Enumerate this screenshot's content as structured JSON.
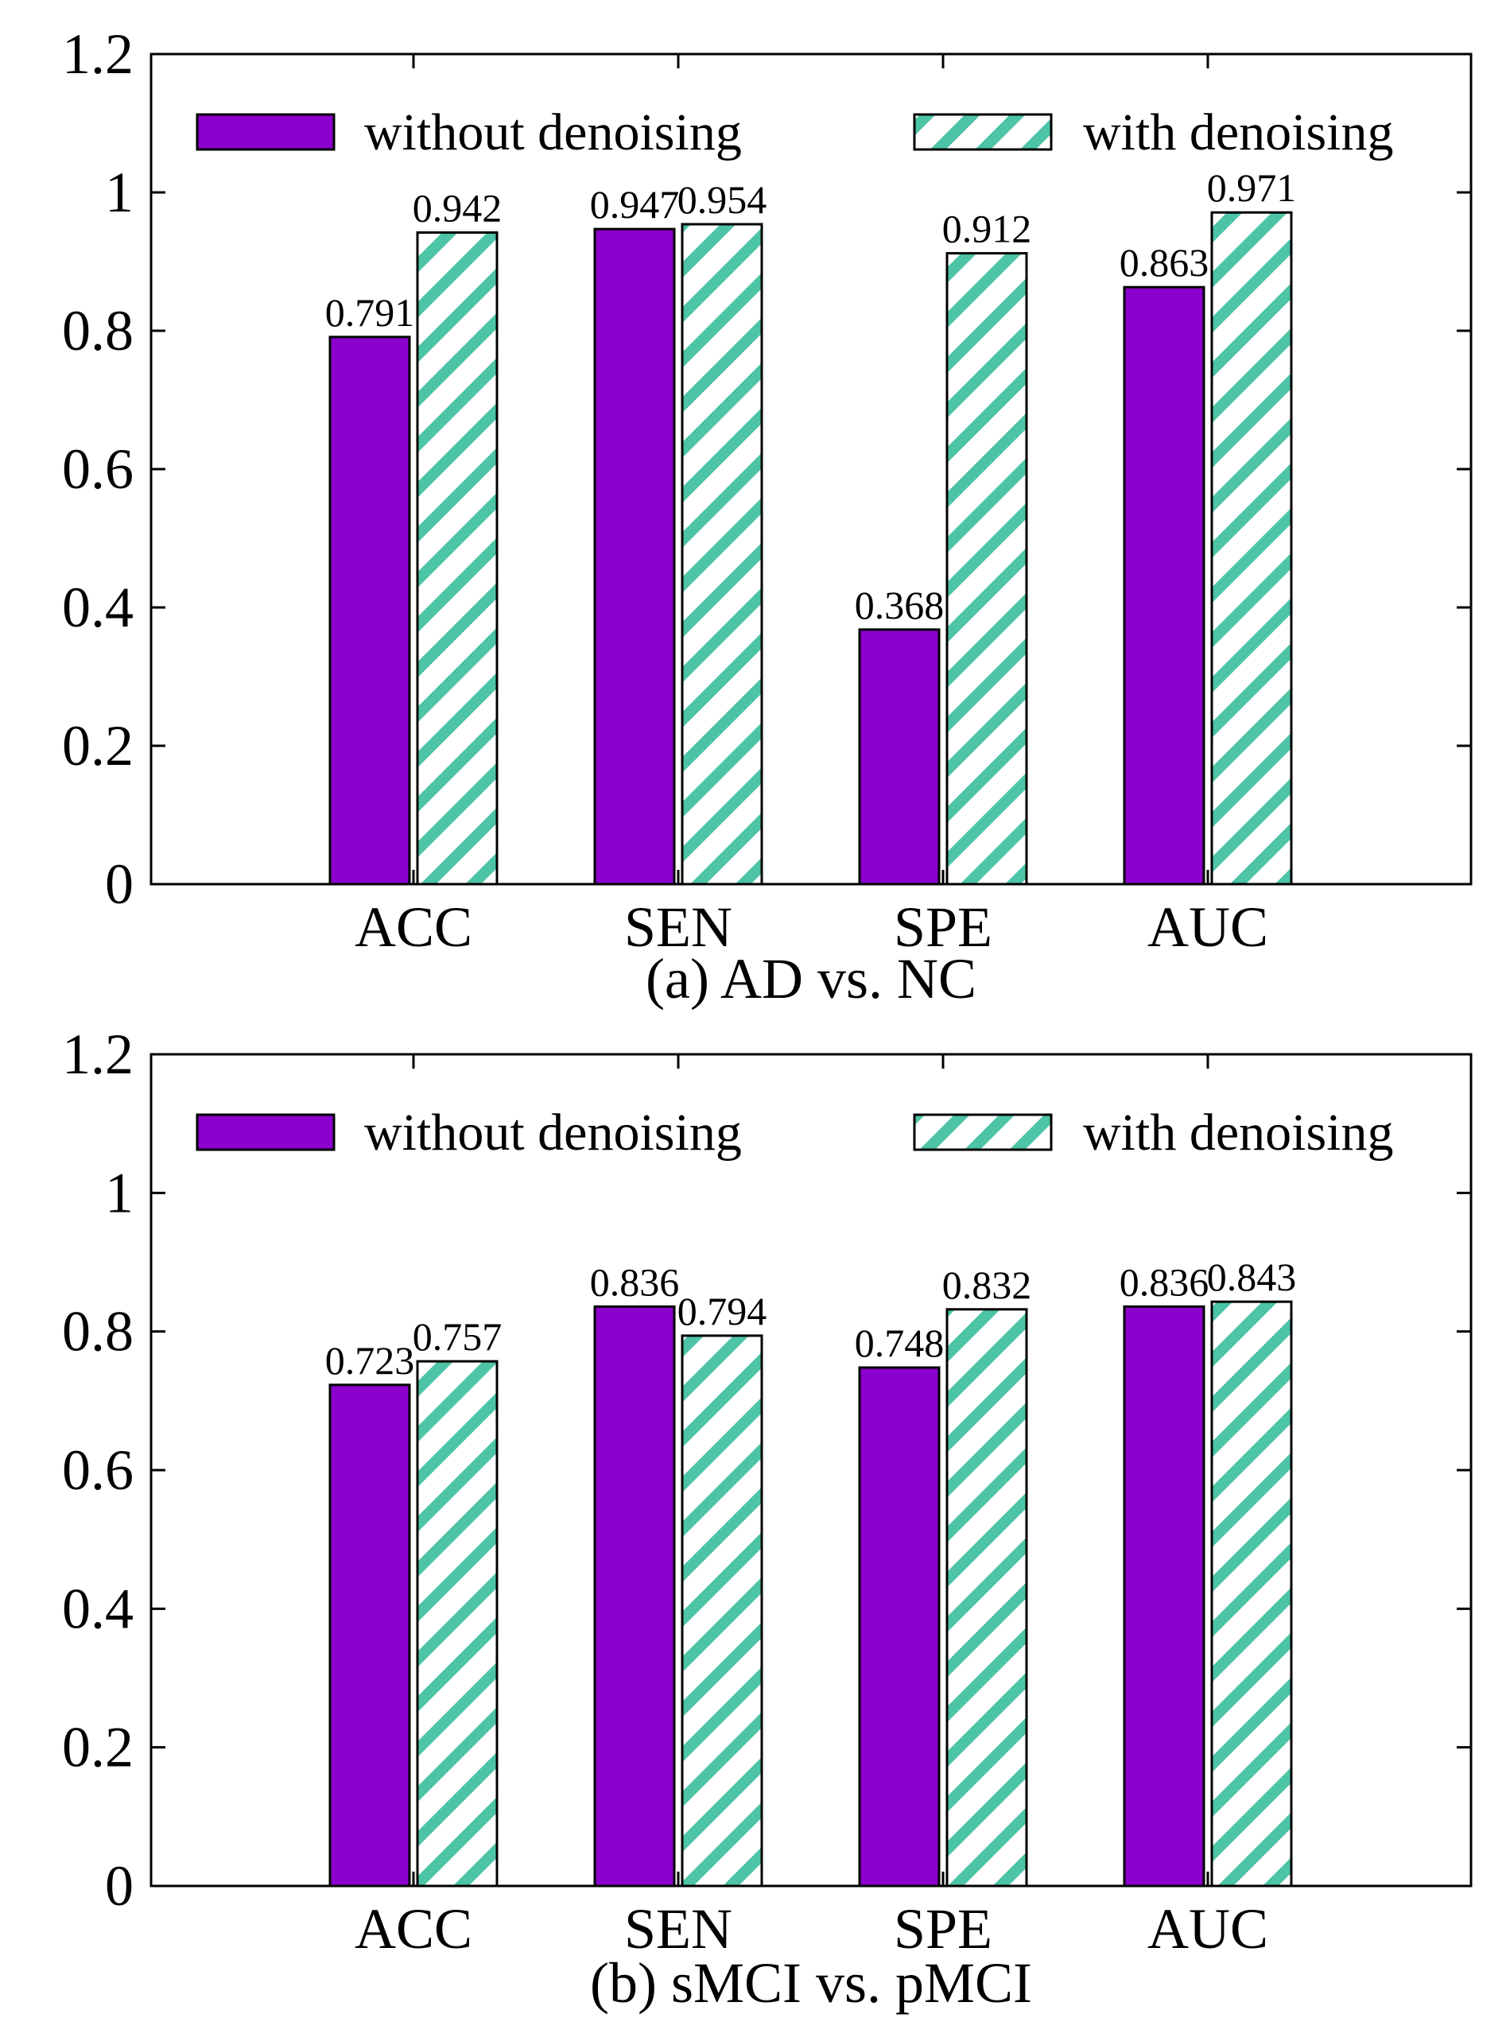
{
  "colors": {
    "without": "#8b00cc",
    "with_stripe": "#4dc4a6",
    "with_bg": "#ffffff",
    "axis": "#000000"
  },
  "chart_data": [
    {
      "type": "bar",
      "caption": "(a) AD vs. NC",
      "categories": [
        "ACC",
        "SEN",
        "SPE",
        "AUC"
      ],
      "series": [
        {
          "name": "without denoising",
          "values": [
            0.791,
            0.947,
            0.368,
            0.863
          ]
        },
        {
          "name": "with denoising",
          "values": [
            0.942,
            0.954,
            0.912,
            0.971
          ]
        }
      ],
      "value_labels": [
        [
          "0.791",
          "0.947",
          "0.368",
          "0.863"
        ],
        [
          "0.942",
          "0.954",
          "0.912",
          "0.971"
        ]
      ],
      "yticks": [
        "0",
        "0.2",
        "0.4",
        "0.6",
        "0.8",
        "1",
        "1.2"
      ],
      "ylim": [
        0,
        1.2
      ],
      "legend_position": "top",
      "xlabel": "",
      "ylabel": ""
    },
    {
      "type": "bar",
      "caption": "(b) sMCI vs. pMCI",
      "categories": [
        "ACC",
        "SEN",
        "SPE",
        "AUC"
      ],
      "series": [
        {
          "name": "without denoising",
          "values": [
            0.723,
            0.836,
            0.748,
            0.836
          ]
        },
        {
          "name": "with denoising",
          "values": [
            0.757,
            0.794,
            0.832,
            0.843
          ]
        }
      ],
      "value_labels": [
        [
          "0.723",
          "0.836",
          "0.748",
          "0.836"
        ],
        [
          "0.757",
          "0.794",
          "0.832",
          "0.843"
        ]
      ],
      "yticks": [
        "0",
        "0.2",
        "0.4",
        "0.6",
        "0.8",
        "1",
        "1.2"
      ],
      "ylim": [
        0,
        1.2
      ],
      "legend_position": "top",
      "xlabel": "",
      "ylabel": ""
    }
  ]
}
